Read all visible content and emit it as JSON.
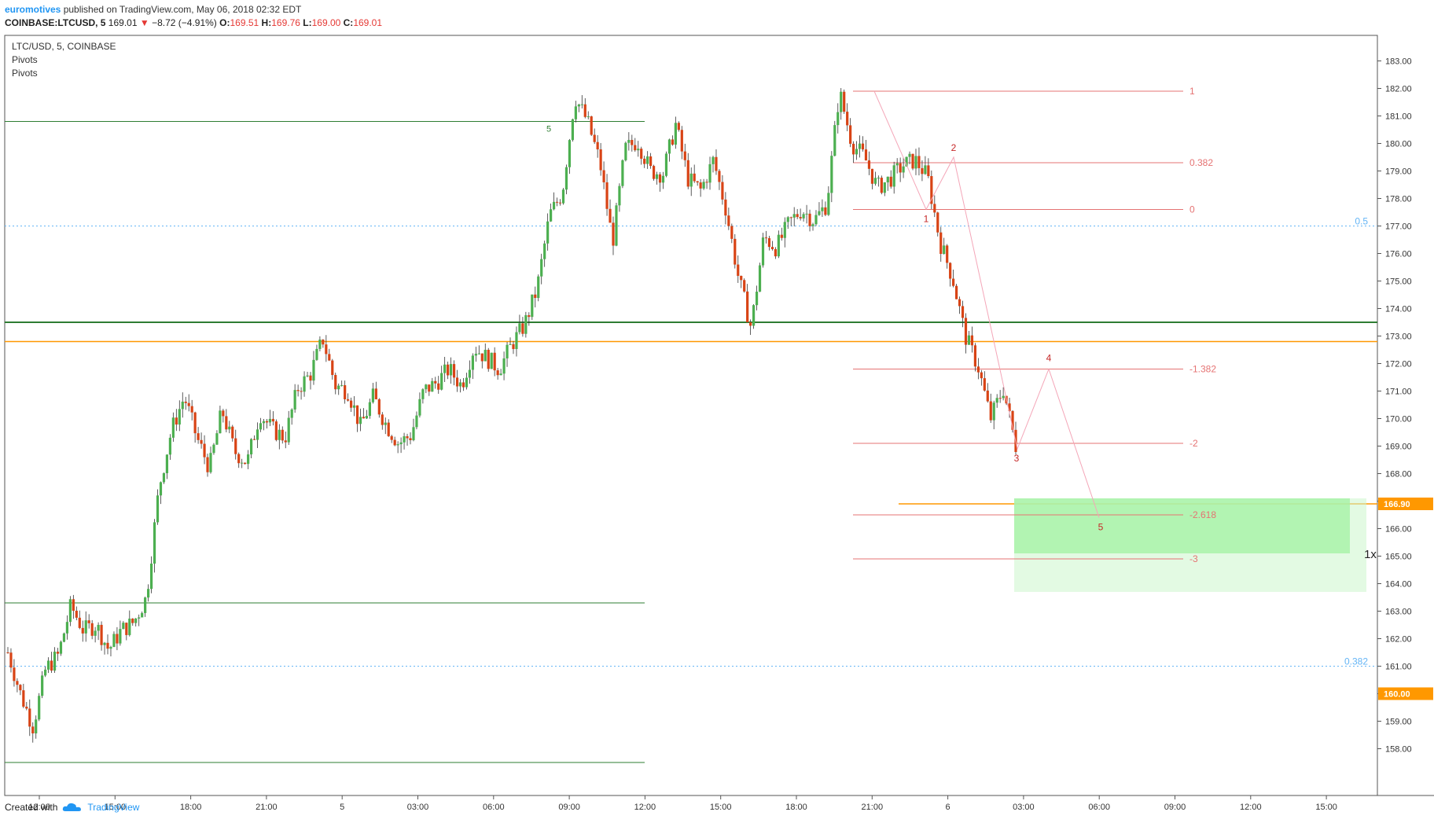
{
  "header": {
    "author": "euromotives",
    "published": "published on TradingView.com, May 06, 2018 02:32 EDT",
    "symbol": "COINBASE:LTCUSD, 5",
    "last": "169.01",
    "change_arrow": "▼",
    "change": "−8.72 (−4.91%)",
    "o_label": "O:",
    "o": "169.51",
    "h_label": "H:",
    "h": "169.76",
    "l_label": "L:",
    "l": "169.00",
    "c_label": "C:",
    "c": "169.01"
  },
  "legend": {
    "title": "LTC/USD, 5, COINBASE",
    "indicator1": "Pivots",
    "indicator2": "Pivots"
  },
  "footer": {
    "created_with": "Created with",
    "brand": "TradingView",
    "logo_icon": "tradingview-cloud-icon"
  },
  "overlay_text": {
    "position_marker": "1x"
  },
  "colors": {
    "up": "#4caf50",
    "down": "#d84315",
    "pivot": "#2e7d32",
    "orange": "#ff9800",
    "fib": "#e57373",
    "blue": "#64b5f6",
    "zone": "#ccf5cc"
  },
  "chart_data": {
    "type": "candlestick",
    "title": "LTC/USD, 5, COINBASE",
    "ylim": [
      157.3,
      183.8
    ],
    "y_ticks": [
      158,
      159,
      160,
      161,
      162,
      163,
      164,
      165,
      166,
      167,
      168,
      169,
      170,
      171,
      172,
      173,
      174,
      175,
      176,
      177,
      178,
      179,
      180,
      181,
      182,
      183
    ],
    "x_ticks": [
      "12:00",
      "15:00",
      "18:00",
      "21:00",
      "5",
      "03:00",
      "06:00",
      "09:00",
      "12:00",
      "15:00",
      "18:00",
      "21:00",
      "6",
      "03:00",
      "06:00",
      "09:00",
      "12:00",
      "15:00"
    ],
    "price_tags": [
      "166.90",
      "160.00"
    ],
    "horizontal_lines": [
      {
        "kind": "pivot",
        "price": 180.8,
        "label": "5"
      },
      {
        "kind": "pivot",
        "price": 173.5,
        "label": ""
      },
      {
        "kind": "pivot",
        "price": 163.3,
        "label": ""
      },
      {
        "kind": "pivot",
        "price": 157.5,
        "label": ""
      },
      {
        "kind": "orange",
        "price": 172.8,
        "label": ""
      },
      {
        "kind": "orange",
        "price": 166.9,
        "label": ""
      },
      {
        "kind": "blue",
        "price": 177.0,
        "label": "0.5"
      },
      {
        "kind": "blue",
        "price": 161.0,
        "label": "0.382"
      }
    ],
    "fib_levels": [
      {
        "label": "1",
        "price": 181.9
      },
      {
        "label": "0.382",
        "price": 179.3
      },
      {
        "label": "0",
        "price": 177.6
      },
      {
        "label": "-1.382",
        "price": 171.8
      },
      {
        "label": "-2",
        "price": 169.1
      },
      {
        "label": "-2.618",
        "price": 166.5
      },
      {
        "label": "-3",
        "price": 164.9
      }
    ],
    "wave_points": [
      {
        "label": "1",
        "price": 177.6
      },
      {
        "label": "2",
        "price": 179.5
      },
      {
        "label": "3",
        "price": 168.9
      },
      {
        "label": "4",
        "price": 171.8
      },
      {
        "label": "5",
        "price": 166.4
      }
    ],
    "target_zone": {
      "top": 167.1,
      "bottom": 163.7
    },
    "price_anchors": [
      [
        161.5,
        160.0,
        158.8,
        160.9,
        161.4,
        163.2,
        162.3,
        162.5,
        161.6,
        162.3,
        162.6,
        163.5,
        167.5,
        169.6,
        170.8,
        169.3,
        168.2,
        170.3,
        168.8,
        168.4,
        170.2,
        169.6,
        169.3,
        171.1,
        171.6,
        172.9,
        171.2,
        171.0,
        169.7,
        170.8,
        169.8,
        169.1,
        169.4,
        171.0,
        171.3,
        171.8,
        171.2,
        172.6,
        172.2,
        171.8,
        172.7,
        173.4,
        174.7,
        177.4,
        178.2,
        181.7,
        180.8,
        179.3,
        176.4,
        179.8,
        180.1,
        179.0,
        178.9,
        180.7,
        178.7,
        178.3,
        179.4,
        177.6,
        175.1,
        173.3,
        176.6,
        176.2,
        177.1,
        177.6,
        177.2,
        177.8,
        181.9,
        180.0,
        179.5,
        178.4,
        178.7,
        179.2,
        179.4,
        178.8,
        176.4,
        175.1,
        173.0,
        171.9,
        170.0,
        171.1,
        169.01
      ]
    ]
  }
}
